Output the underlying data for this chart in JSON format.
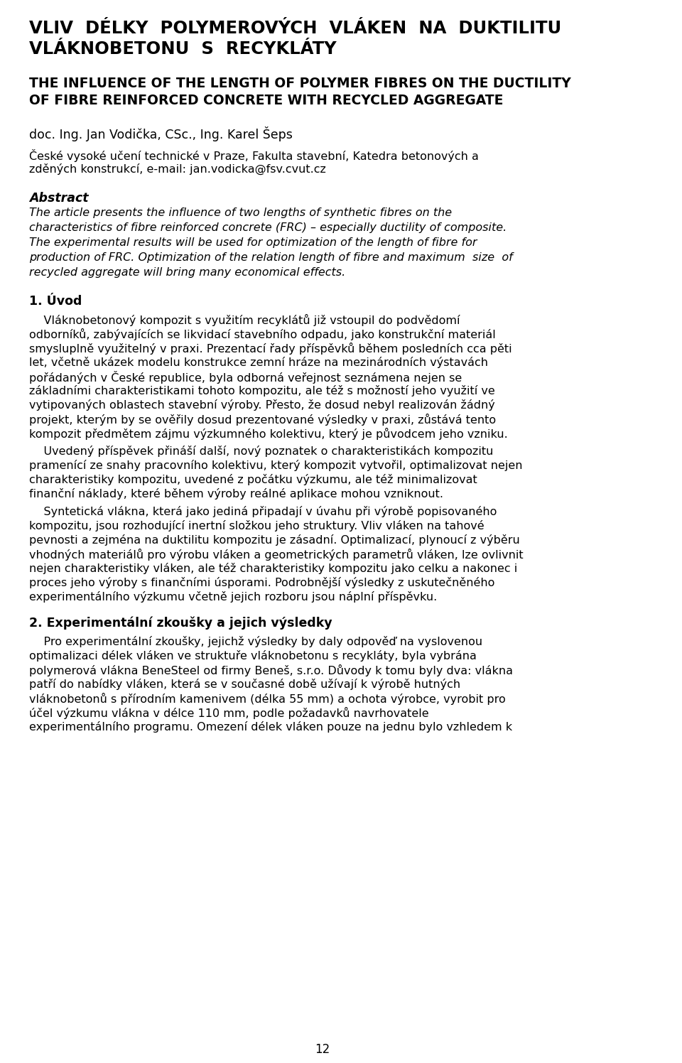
{
  "bg_color": "#ffffff",
  "text_color": "#000000",
  "page_number": "12",
  "title_cz": "VLIV  DÉLKY  POLYMEROVÝCH  VLÁKEN  NA  DUKTILITU\nVLÁKNOBETONU  S  RECYKLÁTY",
  "title_en": "THE INFLUENCE OF THE LENGTH OF POLYMER FIBRES ON THE DUCTILITY\nOF FIBRE REINFORCED CONCRETE WITH RECYCLED AGGREGATE",
  "authors": "doc. Ing. Jan Vodička, CSc., Ing. Karel Šeps",
  "affiliation_line1": "České vysoké učení technické v Praze, Fakulta stavební, Katedra betonových a",
  "affiliation_line2": "zděných konstrukcí, e-mail: jan.vodicka@fsv.cvut.cz",
  "abstract_label": "Abstract",
  "abstract_text": "The article presents the influence of two lengths of synthetic fibres on the characteristics of fibre reinforced concrete (FRC) – especially ductility of composite. The experimental results will be used for optimization of the length of fibre for production of FRC. Optimization of the relation length of fibre and maximum  size  of recycled aggregate will bring many economical effects.",
  "section1_title": "1. Úvod",
  "section1_para1": "Vláknobetonový kompozit s využitím recyklátů již vstoupil do podvědomí odborníků, zabývajících se likvidací stavebního odpadu, jako konstrukční materiál smysluplně využitelný v praxi. Prezentací řady příspěvků během posledních cca pěti let, včetně ukázek modelu konstrukce zemní hráze na mezinárodních výstavách pořádaných v České republice, byla odborná veřejnost seznámena nejen se základními charakteristikami tohoto kompozitu, ale též s možností jeho využití ve vytipovaných oblastech stavební výroby. Přesto, že dosud nebyl realizován žádný projekt, kterým by se ověřily dosud prezentované výsledky v praxi, zůstává tento kompozit předmětem zájmu výzkumného kolektivu, který je původcem jeho vzniku.",
  "section1_para2": "Uvedený příspěvek přináší další, nový poznatek o charakteristikách kompozitu pramenící ze snahy pracovního kolektivu, který kompozit vytvořil, optimalizovat nejen charakteristiky kompozitu, uvedené z počátku výzkumu, ale též minimalizovat finanční náklady, které během výroby reálné aplikace mohou vzniknout.",
  "section1_para3": "Syntetická vlákna, která jako jediná připadají v úvahu při výrobě popisovaného kompozitu, jsou rozhodující inertní složkou jeho struktury. Vliv vláken na tahové pevnosti a zejména na duktilitu kompozitu je zásadní. Optimalizací, plynoucí z výběru vhodných materiálů pro výrobu vláken a geometrických parametrů vláken, lze ovlivnit nejen charakteristiky vláken, ale též charakteristiky kompozitu jako celku a nakonec i proces jeho výroby s finančními úsporami. Podrobnější výsledky z uskutečněného experimentálního výzkumu včetně jejich rozboru jsou náplní příspěvku.",
  "section2_title": "2. Experimentální zkoušky a jejich výsledky",
  "section2_para1": "Pro experimentální zkoušky, jejichž výsledky by daly odpověď na vyslovenou optimalizaci délek vláken ve struktuře vláknobetonu s recykláty, byla vybrána polymerová vlákna BeneSteel od firmy Beneš, s.r.o. Důvody k tomu byly dva: vlákna patří do nabídky vláken, která se v současné době užívají k výrobě hutných vláknobetonů s přírodním kamenivem (délka 55 mm) a ochota výrobce, vyrobit pro účel výzkumu vlákna v délce 110 mm, podle požadavků navrhovatele experimentálního programu. Omezení délek vláken pouze na jednu bylo vzhledem k"
}
